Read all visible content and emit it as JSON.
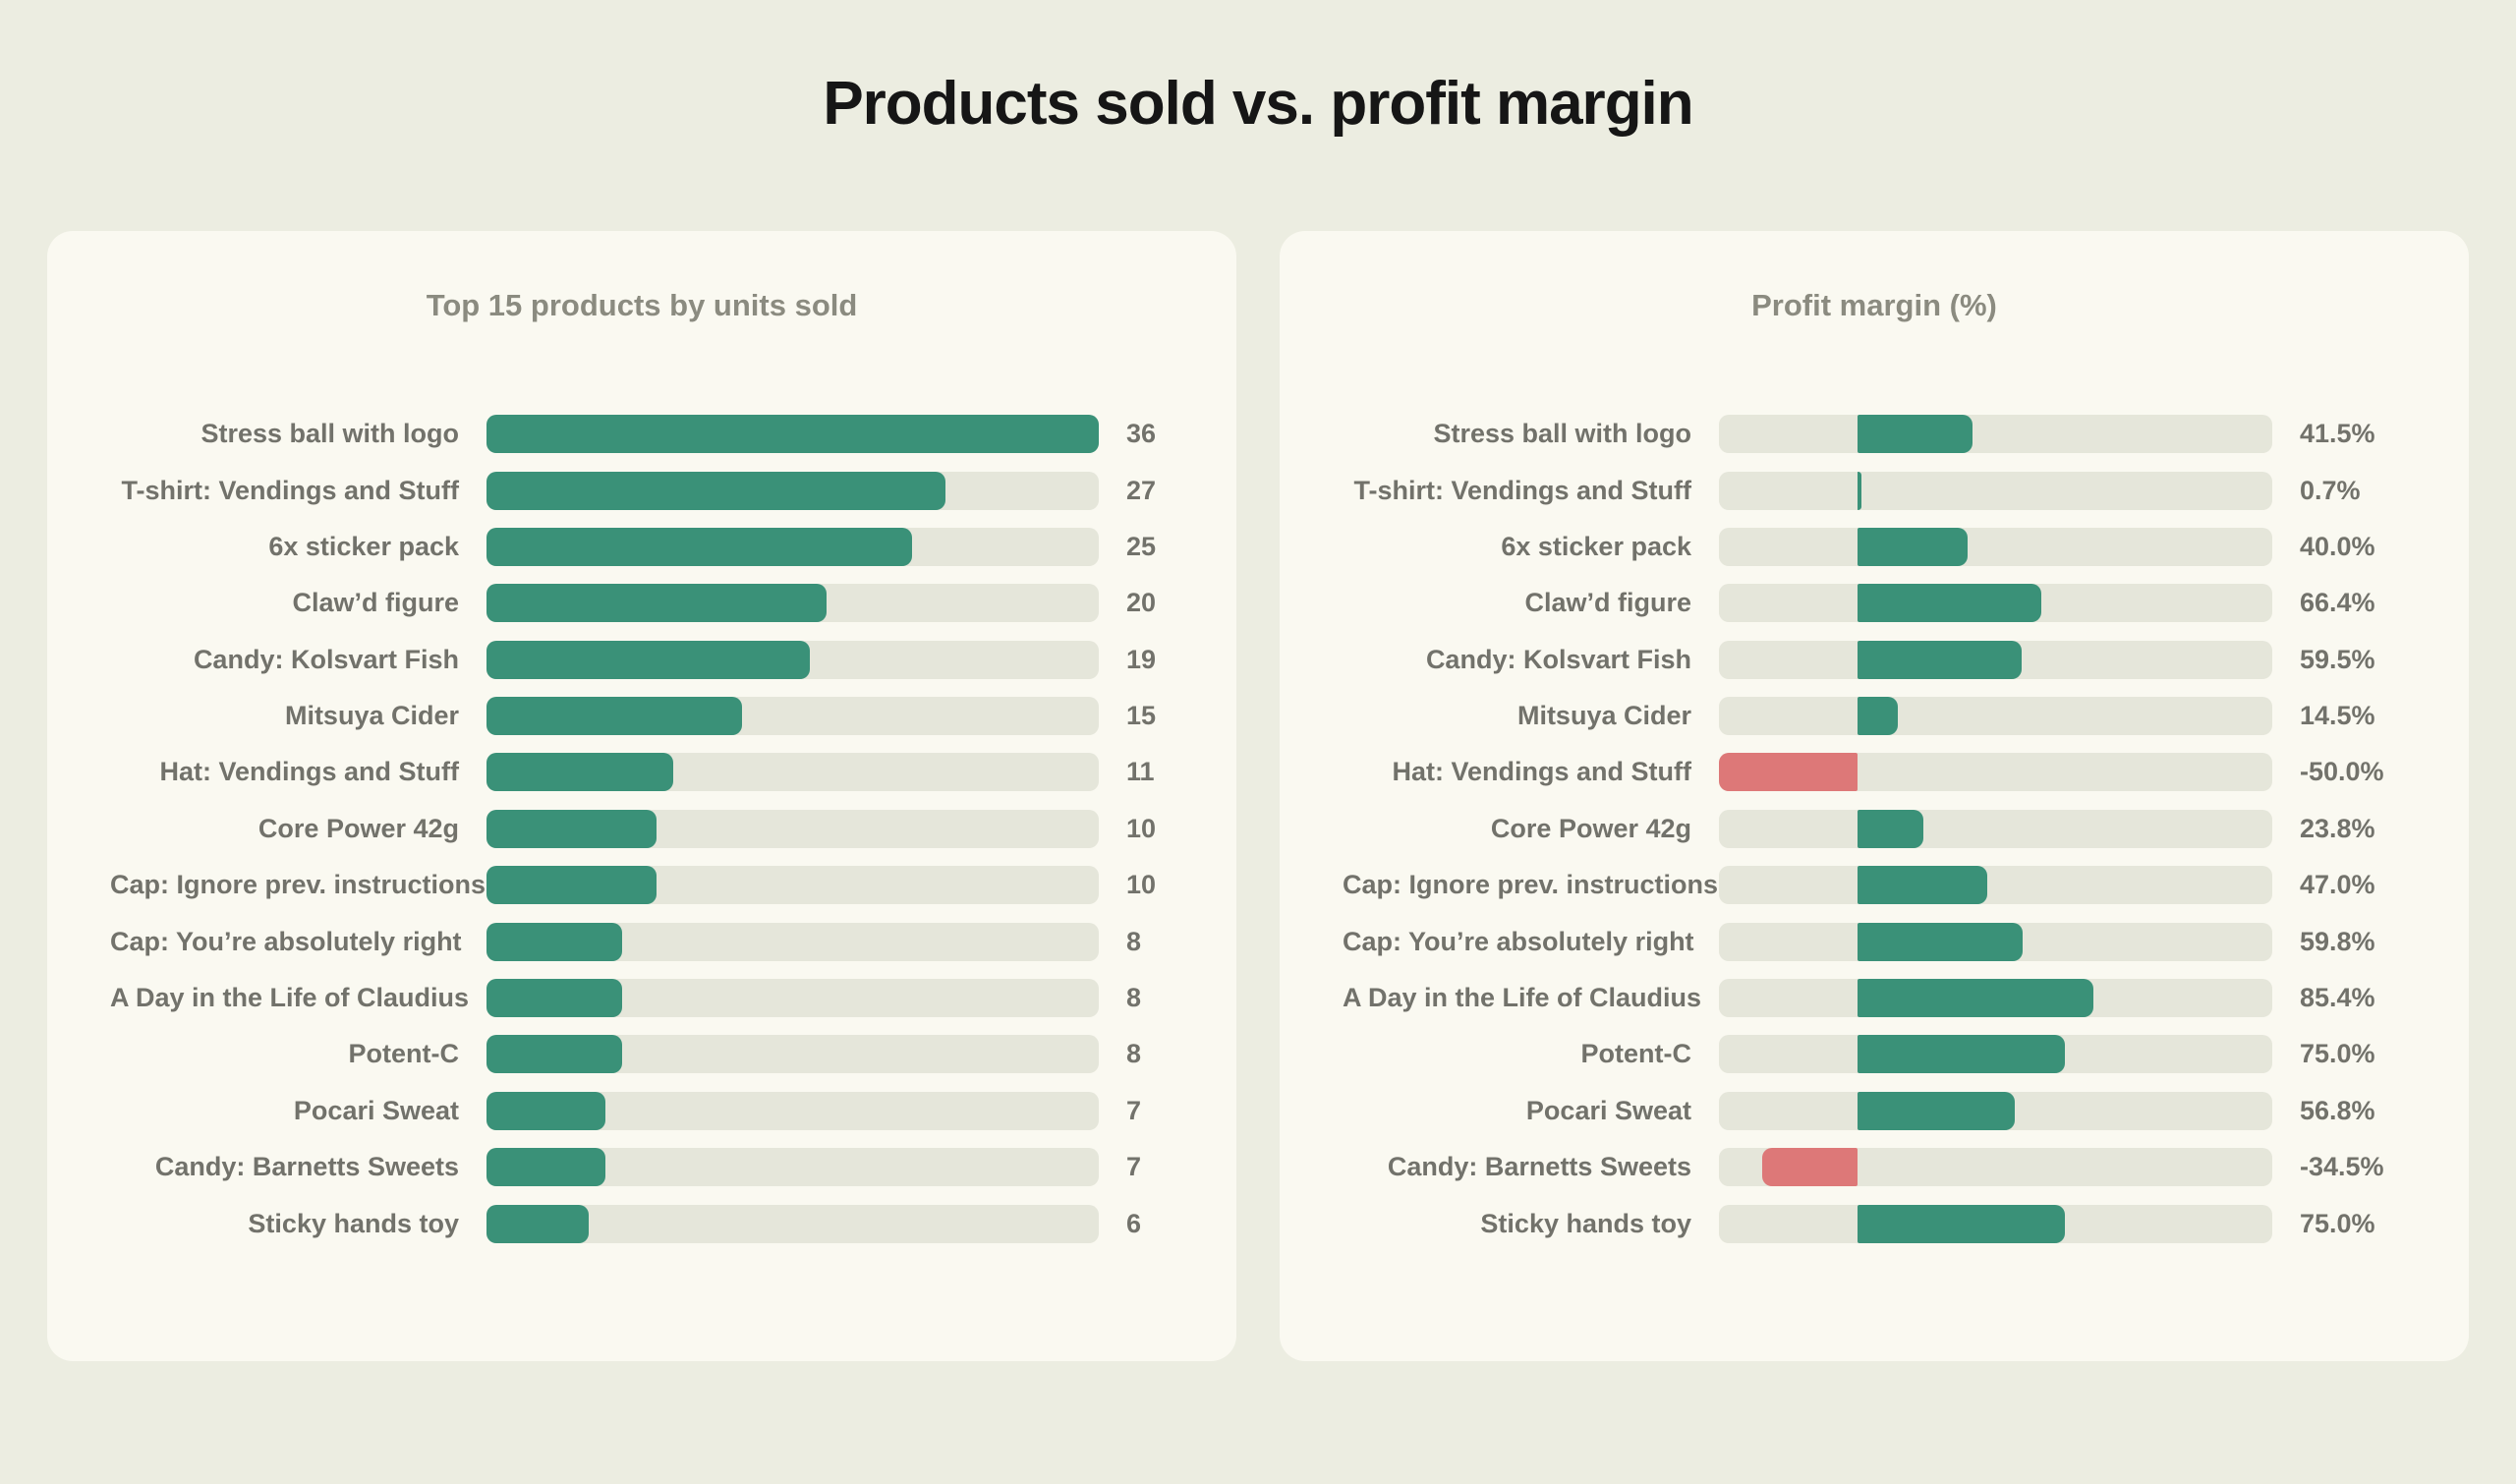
{
  "page_title": "Products sold vs. profit margin",
  "colors": {
    "page_bg": "#ECEDE1",
    "card_bg": "#FAF9F1",
    "track": "#E5E6DA",
    "positive_bar": "#3A9178",
    "negative_bar": "#DD7878",
    "title_text": "#161616",
    "card_title_text": "#8B8B80",
    "label_text": "#72726B"
  },
  "chart_data": [
    {
      "type": "bar",
      "orientation": "horizontal",
      "title": "Top 15 products by units sold",
      "categories": [
        "Stress ball with logo",
        "T-shirt: Vendings and Stuff",
        "6x sticker pack",
        "Claw’d figure",
        "Candy: Kolsvart Fish",
        "Mitsuya Cider",
        "Hat: Vendings and Stuff",
        "Core Power 42g",
        "Cap: Ignore prev. instructions",
        "Cap: You’re absolutely right",
        "A Day in the Life of Claudius",
        "Potent-C",
        "Pocari Sweat",
        "Candy: Barnetts Sweets",
        "Sticky hands toy"
      ],
      "values": [
        36,
        27,
        25,
        20,
        19,
        15,
        11,
        10,
        10,
        8,
        8,
        8,
        7,
        7,
        6
      ],
      "value_labels": [
        "36",
        "27",
        "25",
        "20",
        "19",
        "15",
        "11",
        "10",
        "10",
        "8",
        "8",
        "8",
        "7",
        "7",
        "6"
      ],
      "xlim": [
        0,
        36
      ],
      "legend": null,
      "grid": false
    },
    {
      "type": "bar",
      "orientation": "horizontal",
      "title": "Profit margin (%)",
      "categories": [
        "Stress ball with logo",
        "T-shirt: Vendings and Stuff",
        "6x sticker pack",
        "Claw’d figure",
        "Candy: Kolsvart Fish",
        "Mitsuya Cider",
        "Hat: Vendings and Stuff",
        "Core Power 42g",
        "Cap: Ignore prev. instructions",
        "Cap: You’re absolutely right",
        "A Day in the Life of Claudius",
        "Potent-C",
        "Pocari Sweat",
        "Candy: Barnetts Sweets",
        "Sticky hands toy"
      ],
      "values": [
        41.5,
        0.7,
        40.0,
        66.4,
        59.5,
        14.5,
        -50.0,
        23.8,
        47.0,
        59.8,
        85.4,
        75.0,
        56.8,
        -34.5,
        75.0
      ],
      "value_labels": [
        "41.5%",
        "0.7%",
        "40.0%",
        "66.4%",
        "59.5%",
        "14.5%",
        "-50.0%",
        "23.8%",
        "47.0%",
        "59.8%",
        "85.4%",
        "75.0%",
        "56.8%",
        "-34.5%",
        "75.0%"
      ],
      "xlim": [
        -50,
        150
      ],
      "legend": null,
      "grid": false
    }
  ]
}
